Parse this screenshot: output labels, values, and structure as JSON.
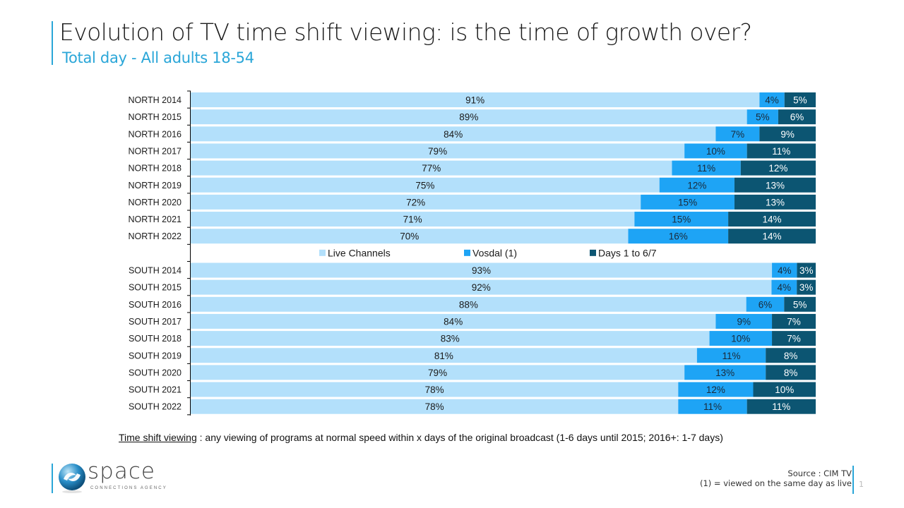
{
  "header": {
    "title": "Evolution of TV time shift viewing: is the time of growth over?",
    "subtitle": "Total day - All adults 18-54"
  },
  "chart_data": {
    "type": "bar",
    "orientation": "horizontal",
    "stacked": true,
    "percent_stacked": true,
    "categories": [
      "NORTH 2014",
      "NORTH 2015",
      "NORTH 2016",
      "NORTH 2017",
      "NORTH 2018",
      "NORTH 2019",
      "NORTH 2020",
      "NORTH 2021",
      "NORTH 2022",
      "",
      "SOUTH 2014",
      "SOUTH 2015",
      "SOUTH 2016",
      "SOUTH 2017",
      "SOUTH 2018",
      "SOUTH 2019",
      "SOUTH 2020",
      "SOUTH 2021",
      "SOUTH 2022"
    ],
    "series": [
      {
        "name": "Live Channels",
        "color": "#b3e0fb",
        "label_color": "#1a1a1a",
        "values": [
          91,
          89,
          84,
          79,
          77,
          75,
          72,
          71,
          70,
          null,
          93,
          92,
          88,
          84,
          83,
          81,
          79,
          78,
          78
        ]
      },
      {
        "name": "Vosdal (1)",
        "color": "#1ea4f5",
        "label_color": "#1a2a3a",
        "values": [
          4,
          5,
          7,
          10,
          11,
          12,
          15,
          15,
          16,
          null,
          4,
          4,
          6,
          9,
          10,
          11,
          13,
          12,
          11
        ]
      },
      {
        "name": "Days 1 to 6/7",
        "color": "#0c5572",
        "label_color": "#ffffff",
        "values": [
          5,
          6,
          9,
          11,
          12,
          13,
          13,
          14,
          14,
          null,
          3,
          3,
          5,
          7,
          7,
          8,
          8,
          10,
          11
        ]
      }
    ],
    "value_suffix": "%",
    "legend": {
      "position": "middle (between North and South groups)",
      "entries": [
        "Live Channels",
        "Vosdal (1)",
        "Days 1 to 6/7"
      ]
    },
    "xaxis": {
      "visible": false,
      "range": [
        0,
        100
      ]
    },
    "grid": false
  },
  "footnote": {
    "term": "Time shift viewing",
    "definition": " : any viewing of programs at normal speed within x days of the original broadcast (1-6 days until 2015; 2016+: 1-7 days)"
  },
  "logo": {
    "word": "space",
    "tagline": "CONNECTIONS AGENCY"
  },
  "source": {
    "line1": "Source : CIM TV",
    "line2": "(1) = viewed on the same day as live"
  },
  "page_number": "1"
}
